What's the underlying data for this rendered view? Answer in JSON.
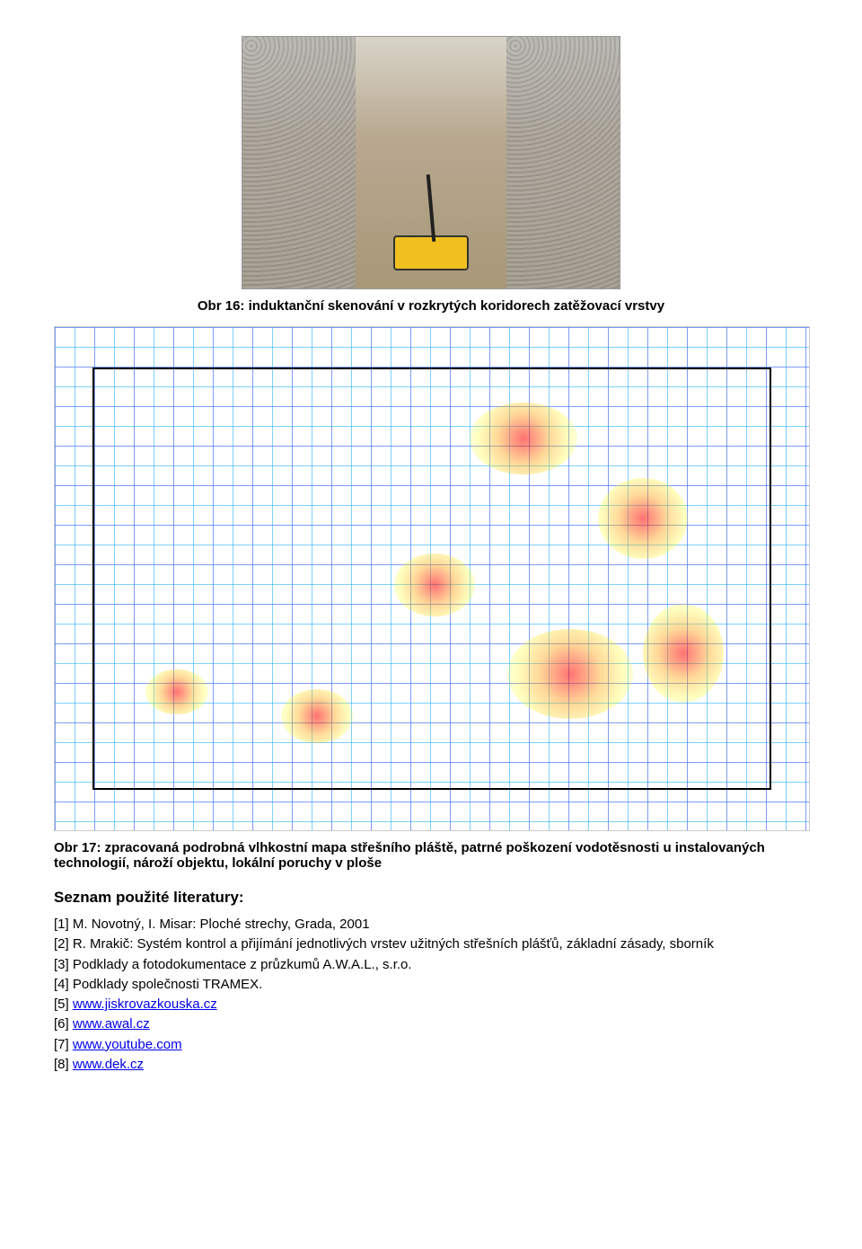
{
  "figure1": {
    "caption": "Obr 16: induktanční skenování v rozkrytých koridorech zatěžovací vrstvy"
  },
  "figure2": {
    "caption": "Obr 17: zpracovaná podrobná vlhkostní mapa střešního pláště, patrné poškození vodotěsnosti u instalovaných technologií, nároží objektu, lokální poruchy v ploše",
    "grid_color_primary": "#00a0ff",
    "grid_color_secondary": "#ff00c8",
    "heat_colors": [
      "#ff0000",
      "#ffa000",
      "#ffff00"
    ]
  },
  "references": {
    "heading": "Seznam použité literatury:",
    "items": [
      {
        "prefix": "[1] ",
        "text": "M. Novotný, I. Misar: Ploché strechy, Grada, 2001",
        "link": null
      },
      {
        "prefix": "[2] ",
        "text": "R. Mrakič: Systém kontrol a přijímání jednotlivých vrstev užitných střešních plášťů, základní zásady, sborník",
        "link": null
      },
      {
        "prefix": "[3] ",
        "text": "Podklady a fotodokumentace z průzkumů A.W.A.L., s.r.o.",
        "link": null
      },
      {
        "prefix": "[4] ",
        "text": "Podklady společnosti TRAMEX.",
        "link": null
      },
      {
        "prefix": "[5] ",
        "text": "",
        "link": "www.jiskrovazkouska.cz"
      },
      {
        "prefix": "[6] ",
        "text": "",
        "link": "www.awal.cz"
      },
      {
        "prefix": "[7] ",
        "text": "",
        "link": "www.youtube.com"
      },
      {
        "prefix": "[8] ",
        "text": "",
        "link": "www.dek.cz"
      }
    ]
  }
}
